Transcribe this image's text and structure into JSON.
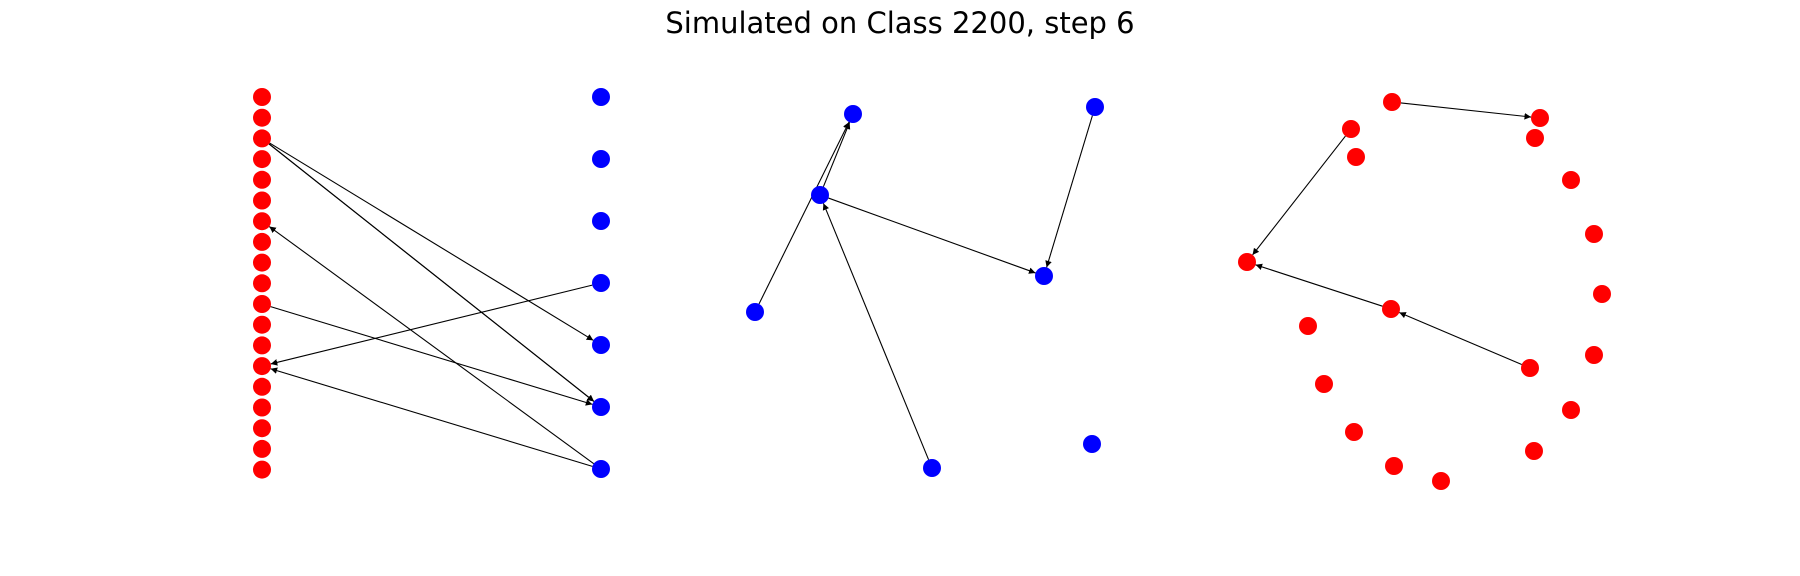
{
  "title": "Simulated on Class 2200, step 6",
  "colors": {
    "group_a": "#ff0000",
    "group_b": "#0000ff",
    "edge": "#000000"
  },
  "panels": [
    {
      "id": "bipartite",
      "layout": "bipartite",
      "node_groups": [
        {
          "color": "group_a",
          "count": 19
        },
        {
          "color": "group_b",
          "count": 7
        }
      ],
      "edges": [
        [
          "a2",
          "b4"
        ],
        [
          "a2",
          "b5"
        ],
        [
          "a2",
          "b5"
        ],
        [
          "b6",
          "a6"
        ],
        [
          "a10",
          "b5"
        ],
        [
          "b3",
          "a13"
        ],
        [
          "b6",
          "a13"
        ]
      ]
    },
    {
      "id": "blue-graph",
      "layout": "spring",
      "color": "group_b",
      "nodes": [
        "n0",
        "n1",
        "n2",
        "n3",
        "n4",
        "n5",
        "n6"
      ],
      "edges": [
        [
          "n1",
          "n0"
        ],
        [
          "n2",
          "n0"
        ],
        [
          "n4",
          "n1"
        ],
        [
          "n1",
          "n3"
        ],
        [
          "n5",
          "n3"
        ]
      ]
    },
    {
      "id": "red-graph",
      "layout": "circular",
      "color": "group_a",
      "nodes": [
        "r0",
        "r1",
        "r2",
        "r3",
        "r4",
        "r5",
        "r6",
        "r7",
        "r8",
        "r9",
        "r10",
        "r11",
        "r12",
        "r13",
        "r14",
        "r15",
        "r16",
        "r17",
        "r18"
      ],
      "edges": [
        [
          "r0",
          "r1"
        ],
        [
          "r3",
          "r4"
        ],
        [
          "r5",
          "r4"
        ],
        [
          "r6",
          "r5"
        ]
      ]
    }
  ]
}
